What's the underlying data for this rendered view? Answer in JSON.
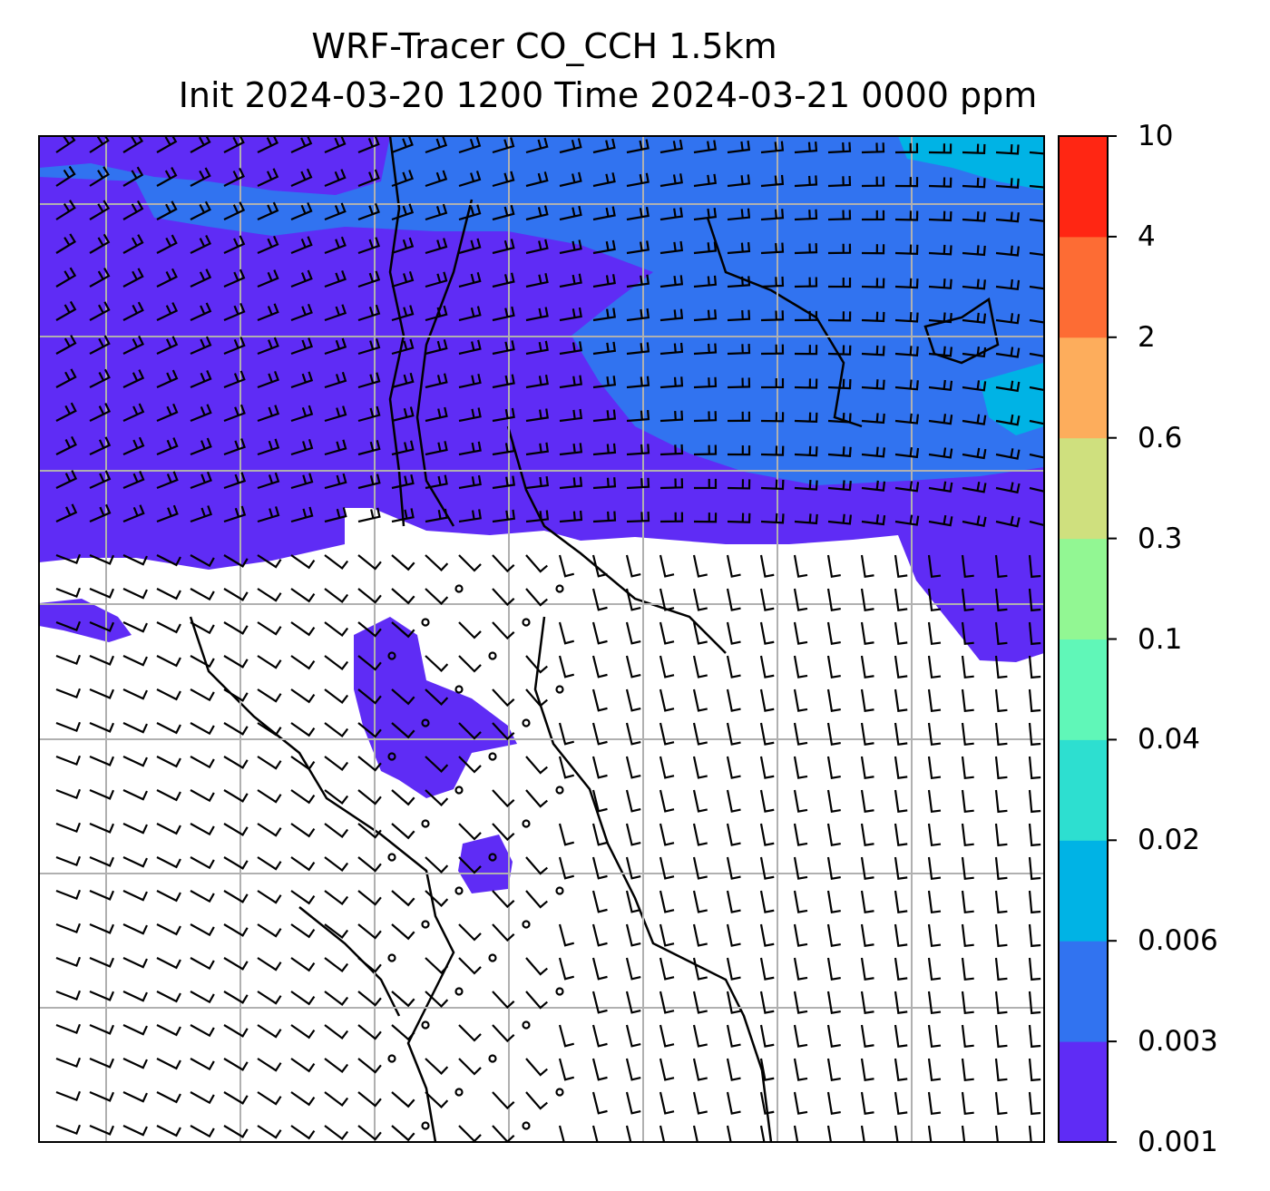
{
  "title": {
    "line1": "WRF-Tracer CO_CCH 1.5km",
    "line2": "Init 2024-03-20 1200 Time 2024-03-21 0000 ppm"
  },
  "colorbar": {
    "levels": [
      "0.001",
      "0.003",
      "0.006",
      "0.02",
      "0.04",
      "0.1",
      "0.3",
      "0.6",
      "2",
      "4",
      "10"
    ],
    "colors": [
      "#5f2cf5",
      "#3173f0",
      "#00b3e5",
      "#2ddfd0",
      "#60f7b8",
      "#92f793",
      "#cfe07e",
      "#fdad5c",
      "#fd6c34",
      "#ff2613"
    ]
  },
  "map": {
    "features": [
      "CO tracer concentration contours",
      "wind barbs",
      "coastlines and borders",
      "lat/lon grid"
    ],
    "background": "#ffffff"
  }
}
